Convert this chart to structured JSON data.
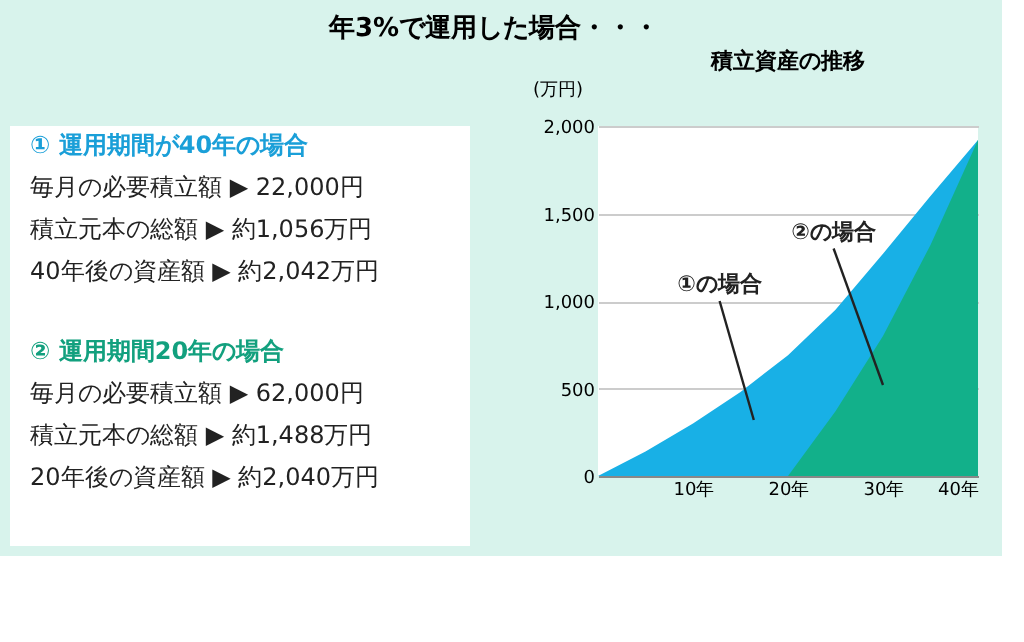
{
  "chart_data": {
    "type": "area",
    "title": "積立資産の推移",
    "ylabel": "(万円)",
    "annotations": [
      "年3%で運用した場合・・・",
      "① 運用期間が40年の場合",
      "毎月の必要積立額 ▶ 22,000円",
      "積立元本の総額 ▶ 約1,056万円",
      "40年後の資産額 ▶ 約2,042万円",
      "② 運用期間20年の場合",
      "毎月の必要積立額 ▶ 62,000円",
      "積立元本の総額 ▶ 約1,488万円",
      "20年後の資産額 ▶ 約2,040万円",
      "①の場合",
      "②の場合"
    ],
    "series": [
      {
        "color": "#18b0e6",
        "x": [
          0,
          5,
          10,
          15,
          20,
          25,
          30,
          35,
          40
        ],
        "values": [
          0,
          140,
          300,
          480,
          690,
          950,
          1270,
          1600,
          1920
        ]
      },
      {
        "color": "#12b08a",
        "x": [
          20,
          25,
          30,
          35,
          40
        ],
        "values": [
          0,
          370,
          800,
          1320,
          1920
        ]
      }
    ],
    "xlim": [
      0,
      40
    ],
    "xticks": [
      {
        "value": 10,
        "label": "10年"
      },
      {
        "value": 20,
        "label": "20年"
      },
      {
        "value": 30,
        "label": "30年"
      },
      {
        "value": 40,
        "label": "40年"
      }
    ],
    "ylim": [
      0,
      2000
    ],
    "yticks": [
      0,
      500,
      {
        "value": 1000,
        "label": "1,000"
      },
      {
        "value": 1500,
        "label": "1,500"
      },
      {
        "value": 2000,
        "label": "2,000"
      }
    ],
    "grid": "y",
    "legend": false
  }
}
